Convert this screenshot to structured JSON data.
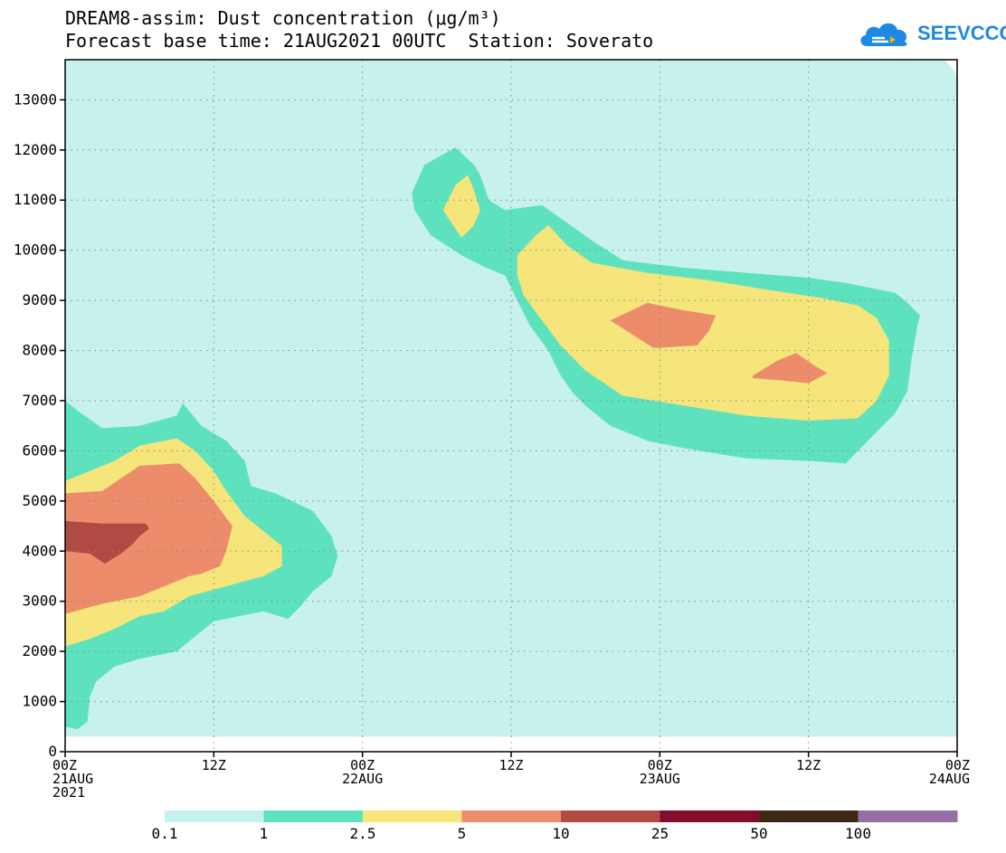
{
  "chart_data": {
    "type": "contour",
    "title": "DREAM8-assim: Dust concentration (μg/m³)",
    "subtitle": "Forecast base time: 21AUG2021 00UTC  Station: Soverato",
    "model": "DREAM8-assim",
    "variable": "Dust concentration",
    "unit": "μg/m³",
    "forecast_base_time": "21AUG2021 00UTC",
    "station": "Soverato",
    "xlabel": "",
    "ylabel": "",
    "xlim_hours": [
      0,
      72
    ],
    "ylim": [
      0,
      13800
    ],
    "y_ticks": [
      0,
      1000,
      2000,
      3000,
      4000,
      5000,
      6000,
      7000,
      8000,
      9000,
      10000,
      11000,
      12000,
      13000
    ],
    "x_ticks": [
      {
        "hour": 0,
        "label": "00Z",
        "sub1": "21AUG",
        "sub2": "2021"
      },
      {
        "hour": 12,
        "label": "12Z",
        "sub1": "",
        "sub2": ""
      },
      {
        "hour": 24,
        "label": "00Z",
        "sub1": "22AUG",
        "sub2": ""
      },
      {
        "hour": 36,
        "label": "12Z",
        "sub1": "",
        "sub2": ""
      },
      {
        "hour": 48,
        "label": "00Z",
        "sub1": "23AUG",
        "sub2": ""
      },
      {
        "hour": 60,
        "label": "12Z",
        "sub1": "",
        "sub2": ""
      },
      {
        "hour": 72,
        "label": "00Z",
        "sub1": "24AUG",
        "sub2": ""
      }
    ],
    "levels": [
      0.1,
      1,
      2.5,
      5,
      10,
      25,
      50,
      100
    ],
    "level_labels": [
      "0.1",
      "1",
      "2.5",
      "5",
      "10",
      "25",
      "50",
      "100"
    ],
    "colors": [
      "#c6f1ec",
      "#5ee2bd",
      "#f5e57b",
      "#ec8c6b",
      "#b04a43",
      "#820c2c",
      "#3d2a16",
      "#9670a4"
    ],
    "grid": true,
    "regions": [
      {
        "level_index": 0,
        "name": "background",
        "points": [
          [
            0,
            13800
          ],
          [
            71,
            13800
          ],
          [
            72,
            13500
          ],
          [
            72,
            300
          ],
          [
            0,
            300
          ]
        ]
      },
      {
        "level_index": 1,
        "name": "low-dust-plume",
        "points": [
          [
            0,
            7000
          ],
          [
            1,
            6800
          ],
          [
            3,
            6450
          ],
          [
            6,
            6500
          ],
          [
            9,
            6700
          ],
          [
            9.5,
            6950
          ],
          [
            11,
            6500
          ],
          [
            13,
            6200
          ],
          [
            14.5,
            5800
          ],
          [
            15,
            5300
          ],
          [
            17,
            5150
          ],
          [
            20,
            4800
          ],
          [
            21.5,
            4300
          ],
          [
            22,
            3900
          ],
          [
            21.5,
            3500
          ],
          [
            20,
            3200
          ],
          [
            19,
            2900
          ],
          [
            18,
            2650
          ],
          [
            16,
            2800
          ],
          [
            14,
            2700
          ],
          [
            12,
            2600
          ],
          [
            10.5,
            2300
          ],
          [
            9,
            2000
          ],
          [
            6,
            1850
          ],
          [
            4,
            1700
          ],
          [
            2.5,
            1400
          ],
          [
            2,
            1100
          ],
          [
            1.8,
            600
          ],
          [
            1,
            450
          ],
          [
            0,
            500
          ]
        ]
      },
      {
        "level_index": 2,
        "name": "low-dust-plume",
        "points": [
          [
            0,
            5400
          ],
          [
            2,
            5600
          ],
          [
            4,
            5800
          ],
          [
            6,
            6100
          ],
          [
            9,
            6250
          ],
          [
            10.5,
            6000
          ],
          [
            12,
            5600
          ],
          [
            13,
            5200
          ],
          [
            14.5,
            4700
          ],
          [
            16,
            4400
          ],
          [
            17.5,
            4100
          ],
          [
            17.5,
            3700
          ],
          [
            16,
            3500
          ],
          [
            13,
            3300
          ],
          [
            10,
            3100
          ],
          [
            8,
            2800
          ],
          [
            6,
            2700
          ],
          [
            4,
            2450
          ],
          [
            2,
            2250
          ],
          [
            0,
            2100
          ]
        ]
      },
      {
        "level_index": 3,
        "name": "low-dust-plume",
        "points": [
          [
            0,
            5150
          ],
          [
            3,
            5200
          ],
          [
            4.5,
            5450
          ],
          [
            6,
            5700
          ],
          [
            9.2,
            5750
          ],
          [
            10.5,
            5450
          ],
          [
            12,
            5000
          ],
          [
            13.5,
            4500
          ],
          [
            13,
            4000
          ],
          [
            12.5,
            3700
          ],
          [
            11,
            3550
          ],
          [
            10,
            3500
          ],
          [
            8,
            3300
          ],
          [
            6,
            3100
          ],
          [
            3,
            2950
          ],
          [
            0,
            2750
          ]
        ]
      },
      {
        "level_index": 4,
        "name": "low-dust-plume",
        "points": [
          [
            0,
            4600
          ],
          [
            3,
            4550
          ],
          [
            6.5,
            4550
          ],
          [
            6.8,
            4450
          ],
          [
            6,
            4300
          ],
          [
            5.5,
            4150
          ],
          [
            4.5,
            3950
          ],
          [
            3.2,
            3750
          ],
          [
            2,
            3950
          ],
          [
            0,
            4000
          ]
        ]
      },
      {
        "level_index": 1,
        "name": "upper-dust-plume",
        "points": [
          [
            28,
            11150
          ],
          [
            29,
            11700
          ],
          [
            31.5,
            12050
          ],
          [
            33,
            11700
          ],
          [
            33.5,
            11500
          ],
          [
            34.2,
            11000
          ],
          [
            35.5,
            10800
          ],
          [
            38.5,
            10900
          ],
          [
            40.5,
            10550
          ],
          [
            42.5,
            10200
          ],
          [
            45,
            9800
          ],
          [
            50,
            9650
          ],
          [
            55,
            9550
          ],
          [
            60,
            9450
          ],
          [
            63,
            9350
          ],
          [
            67,
            9150
          ],
          [
            68,
            8950
          ],
          [
            69,
            8700
          ],
          [
            68.8,
            8500
          ],
          [
            68.3,
            7800
          ],
          [
            68,
            7200
          ],
          [
            67,
            6750
          ],
          [
            65,
            6250
          ],
          [
            63,
            5750
          ],
          [
            60,
            5800
          ],
          [
            55,
            5850
          ],
          [
            50,
            6050
          ],
          [
            47,
            6200
          ],
          [
            44,
            6500
          ],
          [
            42,
            6900
          ],
          [
            41,
            7150
          ],
          [
            40,
            7500
          ],
          [
            39,
            8000
          ],
          [
            37.5,
            8500
          ],
          [
            36.5,
            9000
          ],
          [
            35.5,
            9500
          ],
          [
            34,
            9650
          ],
          [
            32,
            9900
          ],
          [
            29.5,
            10300
          ],
          [
            28.2,
            10800
          ]
        ]
      },
      {
        "level_index": 2,
        "name": "upper-dust-plume",
        "points": [
          [
            30.5,
            10800
          ],
          [
            31.5,
            11300
          ],
          [
            32.5,
            11500
          ],
          [
            33,
            11200
          ],
          [
            33.5,
            10800
          ],
          [
            33,
            10500
          ],
          [
            32,
            10250
          ]
        ]
      },
      {
        "level_index": 2,
        "name": "upper-dust-plume",
        "points": [
          [
            36.5,
            9900
          ],
          [
            38,
            10300
          ],
          [
            39,
            10500
          ],
          [
            40.5,
            10100
          ],
          [
            42.5,
            9750
          ],
          [
            47,
            9550
          ],
          [
            52,
            9400
          ],
          [
            57,
            9200
          ],
          [
            61,
            9050
          ],
          [
            64,
            8900
          ],
          [
            65.5,
            8650
          ],
          [
            66.5,
            8200
          ],
          [
            66.5,
            7500
          ],
          [
            65.5,
            7000
          ],
          [
            64,
            6650
          ],
          [
            60,
            6600
          ],
          [
            55,
            6700
          ],
          [
            50,
            6900
          ],
          [
            45,
            7100
          ],
          [
            42,
            7600
          ],
          [
            40,
            8100
          ],
          [
            38.5,
            8600
          ],
          [
            37,
            9100
          ],
          [
            36.5,
            9500
          ]
        ]
      },
      {
        "level_index": 3,
        "name": "upper-dust-plume",
        "points": [
          [
            44,
            8600
          ],
          [
            47,
            8950
          ],
          [
            50,
            8800
          ],
          [
            52.5,
            8700
          ],
          [
            52,
            8400
          ],
          [
            51,
            8100
          ],
          [
            47.5,
            8050
          ]
        ]
      },
      {
        "level_index": 3,
        "name": "upper-dust-plume",
        "points": [
          [
            55.5,
            7500
          ],
          [
            57.5,
            7800
          ],
          [
            59,
            7950
          ],
          [
            60.5,
            7700
          ],
          [
            61.5,
            7550
          ],
          [
            60,
            7350
          ],
          [
            58,
            7400
          ],
          [
            55.5,
            7450
          ]
        ]
      }
    ]
  },
  "logo": {
    "text": "SEEVCCC",
    "color": "#1e88e5"
  }
}
